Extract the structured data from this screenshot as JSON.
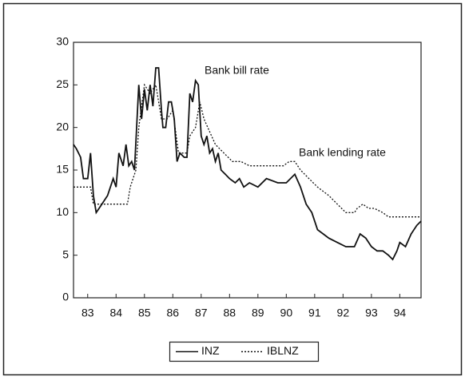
{
  "chart_data": {
    "type": "line",
    "annotations": [
      "Bank bill rate",
      "Bank lending rate"
    ],
    "xlim": [
      1983,
      1995.25
    ],
    "xticks": [
      {
        "value": 1983.5,
        "label": "83"
      },
      {
        "value": 1984.5,
        "label": "84"
      },
      {
        "value": 1985.5,
        "label": "85"
      },
      {
        "value": 1986.5,
        "label": "86"
      },
      {
        "value": 1987.5,
        "label": "87"
      },
      {
        "value": 1988.5,
        "label": "88"
      },
      {
        "value": 1989.5,
        "label": "89"
      },
      {
        "value": 1990.5,
        "label": "90"
      },
      {
        "value": 1991.5,
        "label": "91"
      },
      {
        "value": 1992.5,
        "label": "92"
      },
      {
        "value": 1993.5,
        "label": "93"
      },
      {
        "value": 1994.5,
        "label": "94"
      }
    ],
    "ylim": [
      0,
      30
    ],
    "yticks": [
      0,
      5,
      10,
      15,
      20,
      25,
      30
    ],
    "series": [
      {
        "name": "INZ",
        "color": "#111111",
        "dash": "solid",
        "x": [
          1983.0,
          1983.1,
          1983.25,
          1983.35,
          1983.5,
          1983.6,
          1983.7,
          1983.8,
          1983.9,
          1984.0,
          1984.2,
          1984.4,
          1984.5,
          1984.6,
          1984.75,
          1984.85,
          1984.95,
          1985.05,
          1985.15,
          1985.3,
          1985.4,
          1985.5,
          1985.6,
          1985.7,
          1985.8,
          1985.9,
          1986.0,
          1986.1,
          1986.15,
          1986.25,
          1986.35,
          1986.45,
          1986.55,
          1986.65,
          1986.75,
          1986.9,
          1987.0,
          1987.1,
          1987.2,
          1987.3,
          1987.4,
          1987.5,
          1987.6,
          1987.7,
          1987.8,
          1987.9,
          1988.0,
          1988.1,
          1988.2,
          1988.35,
          1988.5,
          1988.7,
          1988.85,
          1989.0,
          1989.2,
          1989.5,
          1989.8,
          1990.2,
          1990.5,
          1990.8,
          1991.0,
          1991.2,
          1991.4,
          1991.6,
          1991.8,
          1992.0,
          1992.3,
          1992.6,
          1992.9,
          1993.1,
          1993.3,
          1993.5,
          1993.7,
          1993.9,
          1994.1,
          1994.25,
          1994.4,
          1994.5,
          1994.7,
          1994.9,
          1995.1,
          1995.25
        ],
        "values": [
          18,
          17.5,
          16.5,
          14,
          14,
          17,
          12,
          10,
          10.5,
          11,
          12,
          14,
          13,
          17,
          15.5,
          18,
          15.5,
          16,
          15,
          25,
          21,
          24.5,
          22,
          25,
          22.5,
          27,
          27,
          22,
          20,
          20,
          23,
          23,
          21,
          16,
          17,
          16.5,
          16.5,
          24,
          23,
          25.5,
          25,
          19,
          18,
          19,
          17,
          17.5,
          16,
          17,
          15,
          14.5,
          14,
          13.5,
          14,
          13,
          13.5,
          13,
          14,
          13.5,
          13.5,
          14.5,
          13,
          11,
          10,
          8,
          7.5,
          7,
          6.5,
          6,
          6,
          7.5,
          7,
          6,
          5.5,
          5.5,
          5,
          4.5,
          5.5,
          6.5,
          6,
          7.5,
          8.5,
          9
        ]
      },
      {
        "name": "IBLNZ",
        "color": "#111111",
        "dash": "dotted",
        "x": [
          1983.0,
          1983.6,
          1983.7,
          1984.5,
          1984.9,
          1985.0,
          1985.2,
          1985.3,
          1985.5,
          1985.7,
          1985.9,
          1986.1,
          1986.3,
          1986.5,
          1986.7,
          1987.0,
          1987.1,
          1987.3,
          1987.45,
          1987.6,
          1987.8,
          1988.0,
          1988.3,
          1988.6,
          1988.9,
          1989.2,
          1989.5,
          1990.0,
          1990.4,
          1990.6,
          1990.8,
          1991.0,
          1991.3,
          1991.6,
          1992.0,
          1992.3,
          1992.6,
          1992.9,
          1993.0,
          1993.2,
          1993.4,
          1993.6,
          1993.9,
          1994.1,
          1994.5,
          1995.25
        ],
        "values": [
          13,
          13,
          11,
          11,
          11,
          13,
          15,
          20,
          25,
          24,
          25,
          21,
          21,
          22,
          17,
          17,
          19,
          20,
          23,
          21,
          19.5,
          18,
          17,
          16,
          16,
          15.5,
          15.5,
          15.5,
          15.5,
          16,
          16,
          15,
          14,
          13,
          12,
          11,
          10,
          10,
          10.5,
          11,
          10.5,
          10.5,
          10,
          9.5,
          9.5,
          9.5
        ]
      }
    ]
  }
}
